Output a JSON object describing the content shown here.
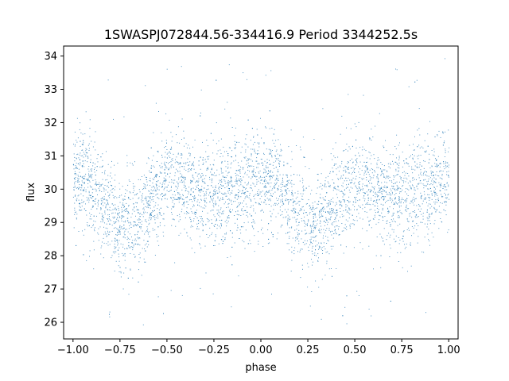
{
  "chart_data": {
    "type": "scatter",
    "title": "1SWASPJ072844.56-334416.9 Period 3344252.5s",
    "xlabel": "phase",
    "ylabel": "flux",
    "xlim": [
      -1.05,
      1.05
    ],
    "ylim": [
      25.5,
      34.3
    ],
    "xticks": [
      -1.0,
      -0.75,
      -0.5,
      -0.25,
      0.0,
      0.25,
      0.5,
      0.75,
      1.0
    ],
    "xtick_labels": [
      "−1.00",
      "−0.75",
      "−0.50",
      "−0.25",
      "0.00",
      "0.25",
      "0.50",
      "0.75",
      "1.00"
    ],
    "yticks": [
      26,
      27,
      28,
      29,
      30,
      31,
      32,
      33,
      34
    ],
    "ytick_labels": [
      "26",
      "27",
      "28",
      "29",
      "30",
      "31",
      "32",
      "33",
      "34"
    ],
    "grid": false,
    "legend": "none",
    "point_color": "#1f77b4",
    "series": [
      {
        "profile_x": [
          -1.0,
          -0.95,
          -0.9,
          -0.85,
          -0.8,
          -0.75,
          -0.7,
          -0.65,
          -0.6,
          -0.55,
          -0.5,
          -0.45,
          -0.4,
          -0.35,
          -0.3,
          -0.25,
          -0.2,
          -0.15,
          -0.1,
          -0.05,
          0.0,
          0.05,
          0.1,
          0.15,
          0.2,
          0.25,
          0.3,
          0.35,
          0.4,
          0.45,
          0.5,
          0.55,
          0.6,
          0.65,
          0.7,
          0.75,
          0.8,
          0.85,
          0.9,
          0.95,
          1.0
        ],
        "profile_mean": [
          30.2,
          30.4,
          30.0,
          29.6,
          29.2,
          29.0,
          29.0,
          29.2,
          29.6,
          29.9,
          30.3,
          30.2,
          30.0,
          29.9,
          29.8,
          29.8,
          29.9,
          30.0,
          30.0,
          30.2,
          30.3,
          30.3,
          30.0,
          29.6,
          29.2,
          29.0,
          29.0,
          29.2,
          29.6,
          29.9,
          30.3,
          30.2,
          30.0,
          29.9,
          29.8,
          29.8,
          29.9,
          30.0,
          30.0,
          30.2,
          30.3
        ],
        "spread": 0.75,
        "n_points": 4500
      }
    ]
  }
}
